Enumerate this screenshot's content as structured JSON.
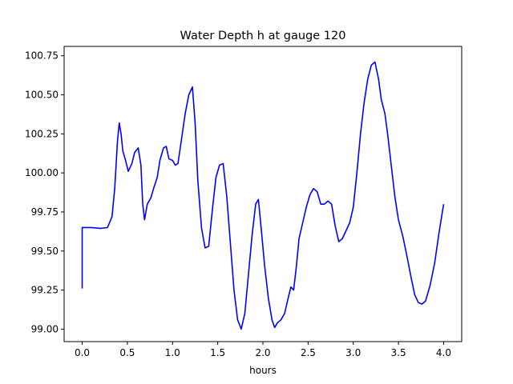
{
  "chart_data": {
    "type": "line",
    "title": "Water Depth h at gauge 120",
    "xlabel": "hours",
    "ylabel": "",
    "xlim": [
      -0.2,
      4.2
    ],
    "ylim": [
      98.92,
      100.81
    ],
    "xticks": [
      "0.0",
      "0.5",
      "1.0",
      "1.5",
      "2.0",
      "2.5",
      "3.0",
      "3.5",
      "4.0"
    ],
    "yticks": [
      "99.00",
      "99.25",
      "99.50",
      "99.75",
      "100.00",
      "100.25",
      "100.50",
      "100.75"
    ],
    "grid": false,
    "line_color": "#0000ff",
    "series": [
      {
        "name": "",
        "points": [
          [
            0.0,
            99.26
          ],
          [
            0.0,
            99.65
          ],
          [
            0.1,
            99.65
          ],
          [
            0.2,
            99.645
          ],
          [
            0.28,
            99.65
          ],
          [
            0.33,
            99.72
          ],
          [
            0.36,
            99.9
          ],
          [
            0.39,
            100.2
          ],
          [
            0.41,
            100.32
          ],
          [
            0.43,
            100.25
          ],
          [
            0.45,
            100.14
          ],
          [
            0.48,
            100.08
          ],
          [
            0.51,
            100.01
          ],
          [
            0.55,
            100.06
          ],
          [
            0.58,
            100.13
          ],
          [
            0.62,
            100.16
          ],
          [
            0.65,
            100.05
          ],
          [
            0.67,
            99.8
          ],
          [
            0.69,
            99.7
          ],
          [
            0.72,
            99.8
          ],
          [
            0.76,
            99.84
          ],
          [
            0.79,
            99.9
          ],
          [
            0.83,
            99.97
          ],
          [
            0.86,
            100.08
          ],
          [
            0.9,
            100.16
          ],
          [
            0.93,
            100.17
          ],
          [
            0.96,
            100.09
          ],
          [
            1.0,
            100.08
          ],
          [
            1.03,
            100.05
          ],
          [
            1.06,
            100.06
          ],
          [
            1.1,
            100.22
          ],
          [
            1.14,
            100.38
          ],
          [
            1.18,
            100.5
          ],
          [
            1.22,
            100.55
          ],
          [
            1.25,
            100.32
          ],
          [
            1.28,
            99.95
          ],
          [
            1.32,
            99.65
          ],
          [
            1.36,
            99.52
          ],
          [
            1.4,
            99.53
          ],
          [
            1.44,
            99.76
          ],
          [
            1.48,
            99.97
          ],
          [
            1.52,
            100.05
          ],
          [
            1.56,
            100.06
          ],
          [
            1.6,
            99.85
          ],
          [
            1.64,
            99.55
          ],
          [
            1.68,
            99.25
          ],
          [
            1.72,
            99.06
          ],
          [
            1.76,
            99.0
          ],
          [
            1.8,
            99.1
          ],
          [
            1.84,
            99.35
          ],
          [
            1.88,
            99.6
          ],
          [
            1.92,
            99.8
          ],
          [
            1.95,
            99.83
          ],
          [
            1.98,
            99.65
          ],
          [
            2.02,
            99.4
          ],
          [
            2.06,
            99.2
          ],
          [
            2.1,
            99.06
          ],
          [
            2.13,
            99.01
          ],
          [
            2.16,
            99.04
          ],
          [
            2.2,
            99.06
          ],
          [
            2.24,
            99.1
          ],
          [
            2.28,
            99.2
          ],
          [
            2.31,
            99.27
          ],
          [
            2.34,
            99.25
          ],
          [
            2.37,
            99.4
          ],
          [
            2.4,
            99.58
          ],
          [
            2.44,
            99.68
          ],
          [
            2.48,
            99.78
          ],
          [
            2.52,
            99.86
          ],
          [
            2.56,
            99.9
          ],
          [
            2.6,
            99.88
          ],
          [
            2.64,
            99.8
          ],
          [
            2.68,
            99.8
          ],
          [
            2.72,
            99.82
          ],
          [
            2.76,
            99.8
          ],
          [
            2.8,
            99.66
          ],
          [
            2.84,
            99.56
          ],
          [
            2.88,
            99.58
          ],
          [
            2.92,
            99.63
          ],
          [
            2.96,
            99.68
          ],
          [
            3.0,
            99.78
          ],
          [
            3.04,
            100.0
          ],
          [
            3.08,
            100.25
          ],
          [
            3.12,
            100.45
          ],
          [
            3.16,
            100.6
          ],
          [
            3.2,
            100.69
          ],
          [
            3.24,
            100.71
          ],
          [
            3.28,
            100.6
          ],
          [
            3.31,
            100.47
          ],
          [
            3.35,
            100.38
          ],
          [
            3.38,
            100.25
          ],
          [
            3.42,
            100.05
          ],
          [
            3.46,
            99.85
          ],
          [
            3.5,
            99.7
          ],
          [
            3.55,
            99.59
          ],
          [
            3.6,
            99.45
          ],
          [
            3.64,
            99.33
          ],
          [
            3.68,
            99.22
          ],
          [
            3.72,
            99.17
          ],
          [
            3.76,
            99.16
          ],
          [
            3.8,
            99.18
          ],
          [
            3.85,
            99.28
          ],
          [
            3.9,
            99.42
          ],
          [
            3.95,
            99.62
          ],
          [
            4.0,
            99.8
          ]
        ]
      }
    ]
  }
}
